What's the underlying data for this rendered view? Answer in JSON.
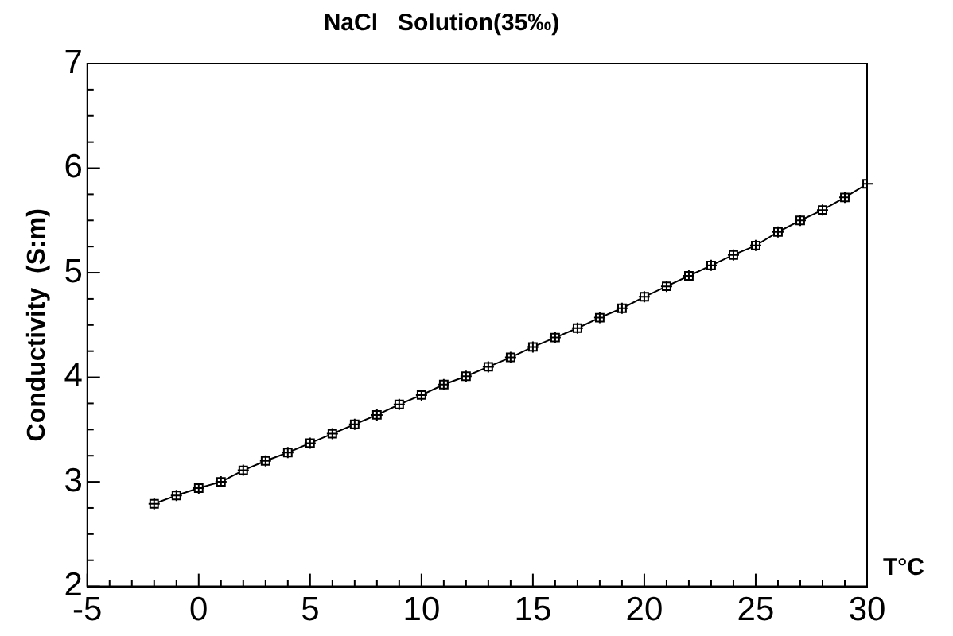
{
  "chart_data": {
    "type": "line",
    "title": "NaCl   Solution(35‰)",
    "xlabel": "T°C",
    "ylabel": "Conductivity  (S:m)",
    "x": [
      -2,
      -1,
      0,
      1,
      2,
      3,
      4,
      5,
      6,
      7,
      8,
      9,
      10,
      11,
      12,
      13,
      14,
      15,
      16,
      17,
      18,
      19,
      20,
      21,
      22,
      23,
      24,
      25,
      26,
      27,
      28,
      29,
      30
    ],
    "series": [
      {
        "color": "#000000",
        "values": [
          2.79,
          2.87,
          2.94,
          3.0,
          3.11,
          3.2,
          3.28,
          3.37,
          3.46,
          3.55,
          3.64,
          3.74,
          3.83,
          3.93,
          4.01,
          4.1,
          4.19,
          4.29,
          4.38,
          4.47,
          4.57,
          4.66,
          4.77,
          4.87,
          4.97,
          5.07,
          5.17,
          5.26,
          5.39,
          5.5,
          5.6,
          5.72,
          5.85
        ]
      }
    ],
    "xlim": [
      -5,
      30
    ],
    "xticks": [
      -5,
      {
        "value": -4,
        "label": null
      },
      {
        "value": -3,
        "label": null
      },
      {
        "value": -2,
        "label": null
      },
      {
        "value": -1,
        "label": null
      },
      0,
      {
        "value": 1,
        "label": null
      },
      {
        "value": 2,
        "label": null
      },
      {
        "value": 3,
        "label": null
      },
      {
        "value": 4,
        "label": null
      },
      5,
      {
        "value": 6,
        "label": null
      },
      {
        "value": 7,
        "label": null
      },
      {
        "value": 8,
        "label": null
      },
      {
        "value": 9,
        "label": null
      },
      10,
      {
        "value": 11,
        "label": null
      },
      {
        "value": 12,
        "label": null
      },
      {
        "value": 13,
        "label": null
      },
      {
        "value": 14,
        "label": null
      },
      15,
      {
        "value": 16,
        "label": null
      },
      {
        "value": 17,
        "label": null
      },
      {
        "value": 18,
        "label": null
      },
      {
        "value": 19,
        "label": null
      },
      20,
      {
        "value": 21,
        "label": null
      },
      {
        "value": 22,
        "label": null
      },
      {
        "value": 23,
        "label": null
      },
      {
        "value": 24,
        "label": null
      },
      25,
      {
        "value": 26,
        "label": null
      },
      {
        "value": 27,
        "label": null
      },
      {
        "value": 28,
        "label": null
      },
      {
        "value": 29,
        "label": null
      },
      30
    ],
    "ylim": [
      2,
      7
    ],
    "yticks": [
      2,
      {
        "value": 2.25,
        "label": null
      },
      {
        "value": 2.5,
        "label": null
      },
      {
        "value": 2.75,
        "label": null
      },
      3,
      {
        "value": 3.25,
        "label": null
      },
      {
        "value": 3.5,
        "label": null
      },
      {
        "value": 3.75,
        "label": null
      },
      4,
      {
        "value": 4.25,
        "label": null
      },
      {
        "value": 4.5,
        "label": null
      },
      {
        "value": 4.75,
        "label": null
      },
      5,
      {
        "value": 5.25,
        "label": null
      },
      {
        "value": 5.5,
        "label": null
      },
      {
        "value": 5.75,
        "label": null
      },
      6,
      {
        "value": 6.25,
        "label": null
      },
      {
        "value": 6.5,
        "label": null
      },
      {
        "value": 6.75,
        "label": null
      },
      7
    ],
    "grid": false,
    "legend": false,
    "marker": "square",
    "line_style": "solid"
  }
}
